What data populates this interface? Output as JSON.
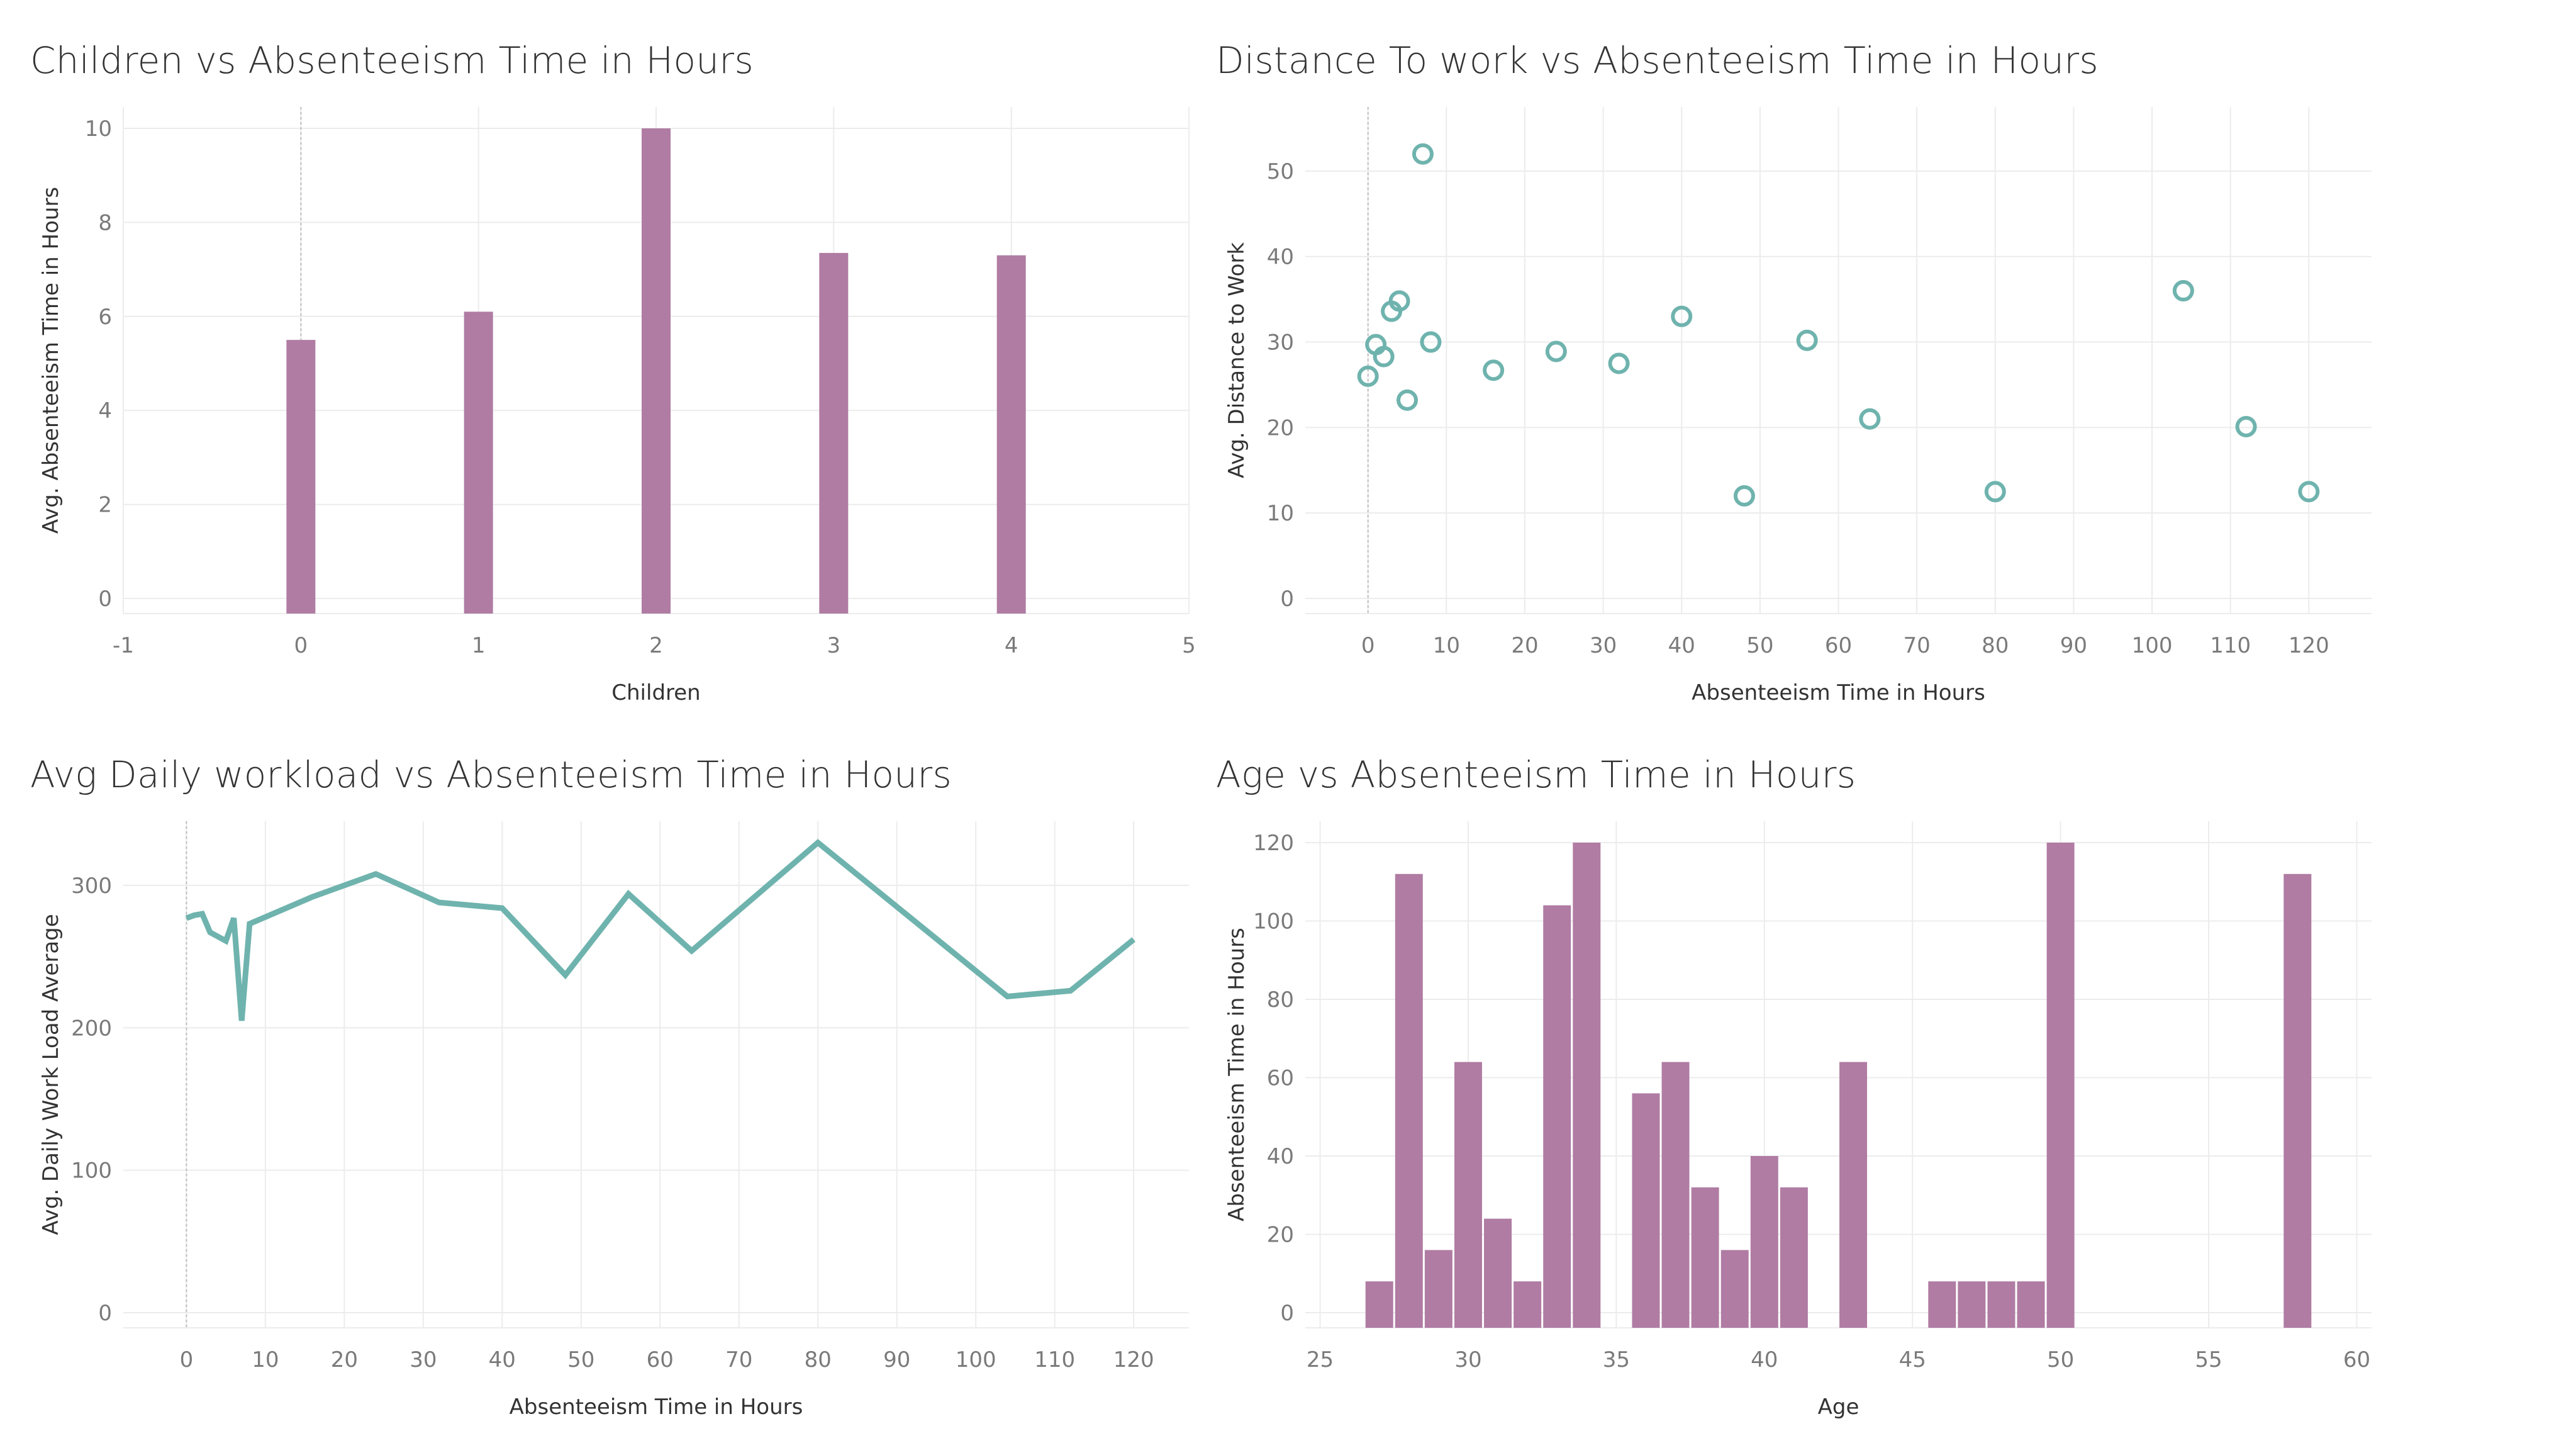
{
  "colors": {
    "bar": "#b07ca3",
    "teal": "#6fb3ae"
  },
  "chart_data": [
    {
      "id": "children",
      "type": "bar",
      "title": "Children vs Absenteeism Time in Hours",
      "xlabel": "Children",
      "ylabel": "Avg. Absenteeism Time in Hours",
      "x": [
        0,
        1,
        2,
        3,
        4
      ],
      "values": [
        5.5,
        6.1,
        10.0,
        7.35,
        7.3
      ],
      "xlim": [
        -1,
        5
      ],
      "ylim": [
        0,
        10
      ],
      "xticks": [
        -1,
        0,
        1,
        2,
        3,
        4,
        5
      ],
      "yticks": [
        0,
        2,
        4,
        6,
        8,
        10
      ],
      "grid": true
    },
    {
      "id": "distance",
      "type": "scatter",
      "title": "Distance To work vs Absenteeism Time in Hours",
      "xlabel": "Absenteeism Time in Hours",
      "ylabel": "Avg. Distance to Work",
      "points": [
        [
          0,
          26
        ],
        [
          1,
          29.7
        ],
        [
          2,
          28.3
        ],
        [
          3,
          33.6
        ],
        [
          4,
          34.8
        ],
        [
          5,
          23.2
        ],
        [
          7,
          52
        ],
        [
          8,
          30
        ],
        [
          16,
          26.7
        ],
        [
          24,
          28.9
        ],
        [
          32,
          27.5
        ],
        [
          40,
          33
        ],
        [
          48,
          12
        ],
        [
          56,
          30.2
        ],
        [
          64,
          21
        ],
        [
          80,
          12.5
        ],
        [
          104,
          36
        ],
        [
          112,
          20.1
        ],
        [
          120,
          12.5
        ]
      ],
      "xlim": [
        -8,
        128
      ],
      "ylim": [
        0,
        55
      ],
      "xticks": [
        0,
        10,
        20,
        30,
        40,
        50,
        60,
        70,
        80,
        90,
        100,
        110,
        120
      ],
      "yticks": [
        0,
        10,
        20,
        30,
        40,
        50
      ],
      "grid": true
    },
    {
      "id": "workload",
      "type": "line",
      "title": "Avg Daily workload vs Absenteeism Time in Hours",
      "xlabel": "Absenteeism Time in Hours",
      "ylabel": "Avg. Daily Work Load Average",
      "points": [
        [
          0,
          277
        ],
        [
          1,
          279
        ],
        [
          2,
          280
        ],
        [
          3,
          267
        ],
        [
          4,
          264
        ],
        [
          5,
          261
        ],
        [
          6,
          277
        ],
        [
          7,
          205
        ],
        [
          8,
          273
        ],
        [
          16,
          292
        ],
        [
          24,
          308
        ],
        [
          32,
          288
        ],
        [
          40,
          284
        ],
        [
          48,
          237
        ],
        [
          56,
          294
        ],
        [
          64,
          254
        ],
        [
          80,
          330
        ],
        [
          104,
          222
        ],
        [
          112,
          226
        ],
        [
          120,
          262
        ]
      ],
      "xlim": [
        -8,
        127
      ],
      "ylim": [
        0,
        330
      ],
      "xticks": [
        0,
        10,
        20,
        30,
        40,
        50,
        60,
        70,
        80,
        90,
        100,
        110,
        120
      ],
      "yticks": [
        0,
        100,
        200,
        300
      ],
      "grid": true
    },
    {
      "id": "age",
      "type": "bar",
      "title": "Age vs Absenteeism Time in Hours",
      "xlabel": "Age",
      "ylabel": "Absenteeism Time in Hours",
      "x": [
        27,
        28,
        29,
        30,
        31,
        32,
        33,
        34,
        36,
        37,
        38,
        39,
        40,
        41,
        43,
        46,
        47,
        48,
        49,
        50,
        58
      ],
      "values": [
        8,
        112,
        16,
        64,
        24,
        8,
        104,
        120,
        56,
        64,
        32,
        16,
        40,
        32,
        64,
        8,
        8,
        8,
        8,
        120,
        112
      ],
      "xlim": [
        24.5,
        60.5
      ],
      "ylim": [
        0,
        120
      ],
      "xticks": [
        25,
        30,
        35,
        40,
        45,
        50,
        55,
        60
      ],
      "yticks": [
        0,
        20,
        40,
        60,
        80,
        100,
        120
      ],
      "grid": true
    }
  ]
}
